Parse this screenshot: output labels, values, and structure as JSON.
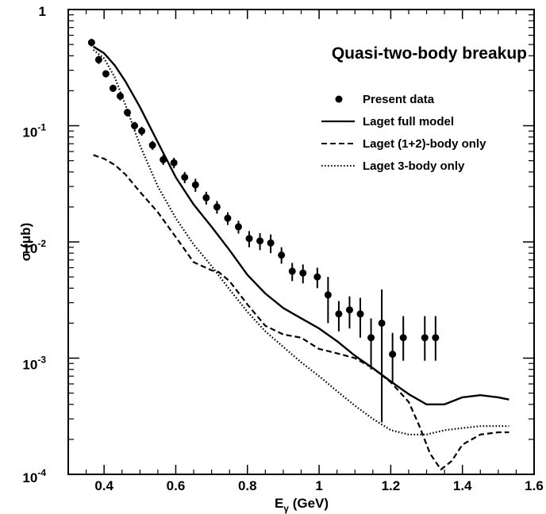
{
  "chart_data": {
    "type": "line",
    "title": "Quasi-two-body breakup",
    "xlabel": "E",
    "xlabel_sub": "γ",
    "xlabel_unit": " (GeV)",
    "ylabel": "σ (μb)",
    "xscale": "linear",
    "yscale": "log",
    "xlim": [
      0.3,
      1.6
    ],
    "ylim": [
      0.0001,
      1
    ],
    "xticks": [
      0.4,
      0.6,
      0.8,
      1.0,
      1.2,
      1.4,
      1.6
    ],
    "xtick_labels": [
      "0.4",
      "0.6",
      "0.8",
      "1",
      "1.2",
      "1.4",
      "1.6"
    ],
    "ytick_labels": [
      {
        "value": 1,
        "base": "1",
        "exp": ""
      },
      {
        "value": 0.1,
        "base": "10",
        "exp": "-1"
      },
      {
        "value": 0.01,
        "base": "10",
        "exp": "-2"
      },
      {
        "value": 0.001,
        "base": "10",
        "exp": "-3"
      },
      {
        "value": 0.0001,
        "base": "10",
        "exp": "-4"
      }
    ],
    "legend_position": "upper-right",
    "legend": [
      {
        "label": "Present data",
        "style": "marker"
      },
      {
        "label": "Laget full model",
        "style": "solid"
      },
      {
        "label": "Laget (1+2)-body only",
        "style": "dashed"
      },
      {
        "label": "Laget 3-body only",
        "style": "dotted"
      }
    ],
    "data_points": {
      "name": "Present data",
      "x": [
        0.365,
        0.385,
        0.405,
        0.425,
        0.445,
        0.465,
        0.485,
        0.505,
        0.535,
        0.565,
        0.595,
        0.625,
        0.655,
        0.685,
        0.715,
        0.745,
        0.775,
        0.805,
        0.835,
        0.865,
        0.895,
        0.925,
        0.955,
        0.995,
        1.025,
        1.055,
        1.085,
        1.115,
        1.145,
        1.175,
        1.205,
        1.235,
        1.295,
        1.325
      ],
      "y": [
        0.52,
        0.37,
        0.28,
        0.21,
        0.18,
        0.13,
        0.1,
        0.09,
        0.068,
        0.051,
        0.048,
        0.036,
        0.031,
        0.024,
        0.02,
        0.016,
        0.0135,
        0.0107,
        0.0102,
        0.0098,
        0.0077,
        0.0056,
        0.0054,
        0.005,
        0.0035,
        0.0024,
        0.0026,
        0.0024,
        0.0015,
        0.002,
        0.00108,
        0.0015,
        0.0015,
        0.0015
      ],
      "y_lo": [
        0.48,
        0.34,
        0.26,
        0.195,
        0.165,
        0.12,
        0.092,
        0.082,
        0.062,
        0.046,
        0.043,
        0.032,
        0.027,
        0.021,
        0.0175,
        0.014,
        0.0118,
        0.009,
        0.0085,
        0.008,
        0.0065,
        0.0046,
        0.0044,
        0.004,
        0.002,
        0.0017,
        0.0018,
        0.0015,
        0.0008,
        0.00028,
        0.0006,
        0.00095,
        0.00095,
        0.00095
      ],
      "y_hi": [
        0.56,
        0.4,
        0.3,
        0.225,
        0.195,
        0.14,
        0.108,
        0.098,
        0.074,
        0.056,
        0.053,
        0.04,
        0.035,
        0.027,
        0.0225,
        0.018,
        0.0152,
        0.0124,
        0.0119,
        0.0116,
        0.009,
        0.0066,
        0.0064,
        0.006,
        0.005,
        0.0031,
        0.0034,
        0.0033,
        0.0022,
        0.0039,
        0.00165,
        0.0023,
        0.0023,
        0.0023
      ]
    },
    "series": [
      {
        "name": "Laget full model",
        "style": "solid",
        "x": [
          0.37,
          0.4,
          0.43,
          0.46,
          0.5,
          0.55,
          0.6,
          0.65,
          0.7,
          0.75,
          0.8,
          0.85,
          0.9,
          0.95,
          1.0,
          1.05,
          1.1,
          1.15,
          1.2,
          1.25,
          1.3,
          1.35,
          1.4,
          1.45,
          1.5,
          1.53
        ],
        "y": [
          0.48,
          0.42,
          0.33,
          0.24,
          0.145,
          0.072,
          0.036,
          0.021,
          0.0135,
          0.0085,
          0.0052,
          0.0036,
          0.0027,
          0.0022,
          0.0018,
          0.0014,
          0.00105,
          0.00082,
          0.00063,
          0.00049,
          0.0004,
          0.0004,
          0.00046,
          0.00048,
          0.00046,
          0.00044
        ]
      },
      {
        "name": "Laget (1+2)-body only",
        "style": "dashed",
        "x": [
          0.37,
          0.4,
          0.43,
          0.46,
          0.5,
          0.55,
          0.6,
          0.65,
          0.7,
          0.72,
          0.75,
          0.8,
          0.85,
          0.9,
          0.95,
          1.0,
          1.05,
          1.1,
          1.15,
          1.2,
          1.25,
          1.28,
          1.31,
          1.34,
          1.37,
          1.4,
          1.45,
          1.5,
          1.53
        ],
        "y": [
          0.056,
          0.052,
          0.046,
          0.038,
          0.027,
          0.018,
          0.011,
          0.0067,
          0.0057,
          0.0055,
          0.0046,
          0.0029,
          0.0019,
          0.0016,
          0.0015,
          0.0012,
          0.0011,
          0.001,
          0.00082,
          0.00062,
          0.00042,
          0.00026,
          0.00015,
          0.00011,
          0.00013,
          0.00018,
          0.00022,
          0.00023,
          0.00023
        ]
      },
      {
        "name": "Laget 3-body only",
        "style": "dotted",
        "x": [
          0.37,
          0.4,
          0.43,
          0.46,
          0.5,
          0.55,
          0.6,
          0.65,
          0.7,
          0.75,
          0.8,
          0.85,
          0.9,
          0.95,
          1.0,
          1.05,
          1.1,
          1.15,
          1.2,
          1.25,
          1.3,
          1.35,
          1.4,
          1.45,
          1.5,
          1.53
        ],
        "y": [
          0.45,
          0.38,
          0.26,
          0.15,
          0.068,
          0.03,
          0.016,
          0.0095,
          0.0062,
          0.0039,
          0.0025,
          0.0017,
          0.00125,
          0.00092,
          0.0007,
          0.00052,
          0.00039,
          0.0003,
          0.00024,
          0.00022,
          0.00022,
          0.00024,
          0.00025,
          0.00026,
          0.00026,
          0.00026
        ]
      }
    ]
  }
}
